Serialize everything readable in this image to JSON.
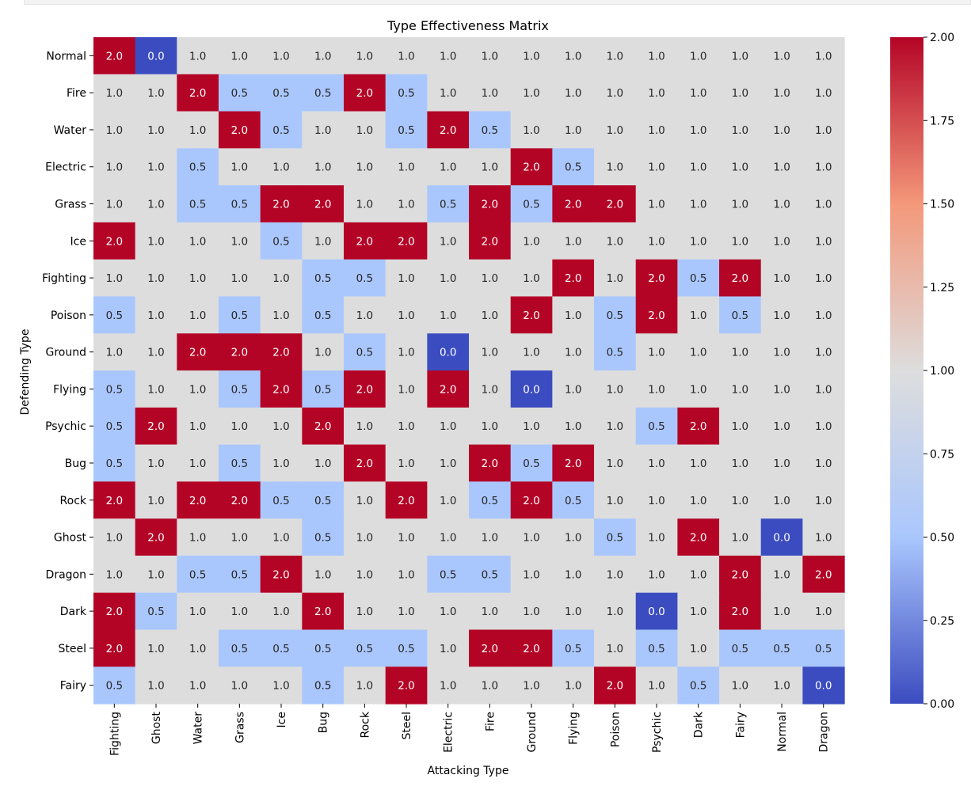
{
  "chart_data": {
    "type": "heatmap",
    "title": "Type Effectiveness Matrix",
    "xlabel": "Attacking Type",
    "ylabel": "Defending Type",
    "x_categories": [
      "Fighting",
      "Ghost",
      "Water",
      "Grass",
      "Ice",
      "Bug",
      "Rock",
      "Steel",
      "Electric",
      "Fire",
      "Ground",
      "Flying",
      "Poison",
      "Psychic",
      "Dark",
      "Fairy",
      "Normal",
      "Dragon"
    ],
    "y_categories": [
      "Normal",
      "Fire",
      "Water",
      "Electric",
      "Grass",
      "Ice",
      "Fighting",
      "Poison",
      "Ground",
      "Flying",
      "Psychic",
      "Bug",
      "Rock",
      "Ghost",
      "Dragon",
      "Dark",
      "Steel",
      "Fairy"
    ],
    "values": [
      [
        2.0,
        0.0,
        1.0,
        1.0,
        1.0,
        1.0,
        1.0,
        1.0,
        1.0,
        1.0,
        1.0,
        1.0,
        1.0,
        1.0,
        1.0,
        1.0,
        1.0,
        1.0
      ],
      [
        1.0,
        1.0,
        2.0,
        0.5,
        0.5,
        0.5,
        2.0,
        0.5,
        1.0,
        1.0,
        1.0,
        1.0,
        1.0,
        1.0,
        1.0,
        1.0,
        1.0,
        1.0
      ],
      [
        1.0,
        1.0,
        1.0,
        2.0,
        0.5,
        1.0,
        1.0,
        0.5,
        2.0,
        0.5,
        1.0,
        1.0,
        1.0,
        1.0,
        1.0,
        1.0,
        1.0,
        1.0
      ],
      [
        1.0,
        1.0,
        0.5,
        1.0,
        1.0,
        1.0,
        1.0,
        1.0,
        1.0,
        1.0,
        2.0,
        0.5,
        1.0,
        1.0,
        1.0,
        1.0,
        1.0,
        1.0
      ],
      [
        1.0,
        1.0,
        0.5,
        0.5,
        2.0,
        2.0,
        1.0,
        1.0,
        0.5,
        2.0,
        0.5,
        2.0,
        2.0,
        1.0,
        1.0,
        1.0,
        1.0,
        1.0
      ],
      [
        2.0,
        1.0,
        1.0,
        1.0,
        0.5,
        1.0,
        2.0,
        2.0,
        1.0,
        2.0,
        1.0,
        1.0,
        1.0,
        1.0,
        1.0,
        1.0,
        1.0,
        1.0
      ],
      [
        1.0,
        1.0,
        1.0,
        1.0,
        1.0,
        0.5,
        0.5,
        1.0,
        1.0,
        1.0,
        1.0,
        2.0,
        1.0,
        2.0,
        0.5,
        2.0,
        1.0,
        1.0
      ],
      [
        0.5,
        1.0,
        1.0,
        0.5,
        1.0,
        0.5,
        1.0,
        1.0,
        1.0,
        1.0,
        2.0,
        1.0,
        0.5,
        2.0,
        1.0,
        0.5,
        1.0,
        1.0
      ],
      [
        1.0,
        1.0,
        2.0,
        2.0,
        2.0,
        1.0,
        0.5,
        1.0,
        0.0,
        1.0,
        1.0,
        1.0,
        0.5,
        1.0,
        1.0,
        1.0,
        1.0,
        1.0
      ],
      [
        0.5,
        1.0,
        1.0,
        0.5,
        2.0,
        0.5,
        2.0,
        1.0,
        2.0,
        1.0,
        0.0,
        1.0,
        1.0,
        1.0,
        1.0,
        1.0,
        1.0,
        1.0
      ],
      [
        0.5,
        2.0,
        1.0,
        1.0,
        1.0,
        2.0,
        1.0,
        1.0,
        1.0,
        1.0,
        1.0,
        1.0,
        1.0,
        0.5,
        2.0,
        1.0,
        1.0,
        1.0
      ],
      [
        0.5,
        1.0,
        1.0,
        0.5,
        1.0,
        1.0,
        2.0,
        1.0,
        1.0,
        2.0,
        0.5,
        2.0,
        1.0,
        1.0,
        1.0,
        1.0,
        1.0,
        1.0
      ],
      [
        2.0,
        1.0,
        2.0,
        2.0,
        0.5,
        0.5,
        1.0,
        2.0,
        1.0,
        0.5,
        2.0,
        0.5,
        1.0,
        1.0,
        1.0,
        1.0,
        1.0,
        1.0
      ],
      [
        1.0,
        2.0,
        1.0,
        1.0,
        1.0,
        0.5,
        1.0,
        1.0,
        1.0,
        1.0,
        1.0,
        1.0,
        0.5,
        1.0,
        2.0,
        1.0,
        0.0,
        1.0
      ],
      [
        1.0,
        1.0,
        0.5,
        0.5,
        2.0,
        1.0,
        1.0,
        1.0,
        0.5,
        0.5,
        1.0,
        1.0,
        1.0,
        1.0,
        1.0,
        2.0,
        1.0,
        2.0
      ],
      [
        2.0,
        0.5,
        1.0,
        1.0,
        1.0,
        2.0,
        1.0,
        1.0,
        1.0,
        1.0,
        1.0,
        1.0,
        1.0,
        0.0,
        1.0,
        2.0,
        1.0,
        1.0
      ],
      [
        2.0,
        1.0,
        1.0,
        0.5,
        0.5,
        0.5,
        0.5,
        0.5,
        1.0,
        2.0,
        2.0,
        0.5,
        1.0,
        0.5,
        1.0,
        0.5,
        0.5,
        0.5
      ],
      [
        0.5,
        1.0,
        1.0,
        1.0,
        1.0,
        0.5,
        1.0,
        2.0,
        1.0,
        1.0,
        1.0,
        1.0,
        2.0,
        1.0,
        0.5,
        1.0,
        1.0,
        0.0
      ]
    ],
    "value_format": "0.0",
    "colormap": "coolwarm",
    "vmin": 0.0,
    "vmax": 2.0,
    "colorbar_ticks": [
      "0.00",
      "0.25",
      "0.50",
      "0.75",
      "1.00",
      "1.25",
      "1.50",
      "1.75",
      "2.00"
    ],
    "colors": {
      "low": "#3b4cc0",
      "0.5": "#aac7fd",
      "mid": "#dddddd",
      "high": "#b40426",
      "label_dark_bg": "#ffffff",
      "label_light_bg": "#262626"
    }
  }
}
